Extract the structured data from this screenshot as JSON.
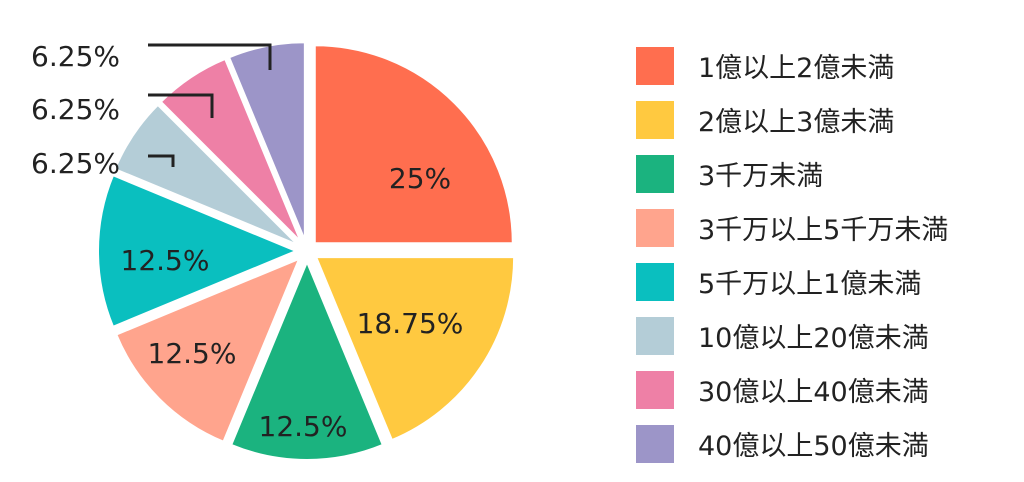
{
  "chart_data": {
    "type": "pie",
    "slices": [
      {
        "label": "1億以上2億未満",
        "value": 25,
        "value_label": "25%",
        "color": "#FF6E4F"
      },
      {
        "label": "2億以上3億未満",
        "value": 18.75,
        "value_label": "18.75%",
        "color": "#FFC940"
      },
      {
        "label": "3千万未満",
        "value": 12.5,
        "value_label": "12.5%",
        "color": "#1BB37F"
      },
      {
        "label": "3千万以上5千万未満",
        "value": 12.5,
        "value_label": "12.5%",
        "color": "#FFA48D"
      },
      {
        "label": "5千万以上1億未満",
        "value": 12.5,
        "value_label": "12.5%",
        "color": "#0ABFBF"
      },
      {
        "label": "10億以上20億未満",
        "value": 6.25,
        "value_label": "6.25%",
        "color": "#B4CDD7"
      },
      {
        "label": "30億以上40億未満",
        "value": 6.25,
        "value_label": "6.25%",
        "color": "#EE80A6"
      },
      {
        "label": "40億以上50億未満",
        "value": 6.25,
        "value_label": "6.25%",
        "color": "#9C95C8"
      }
    ],
    "legend_position": "right"
  }
}
